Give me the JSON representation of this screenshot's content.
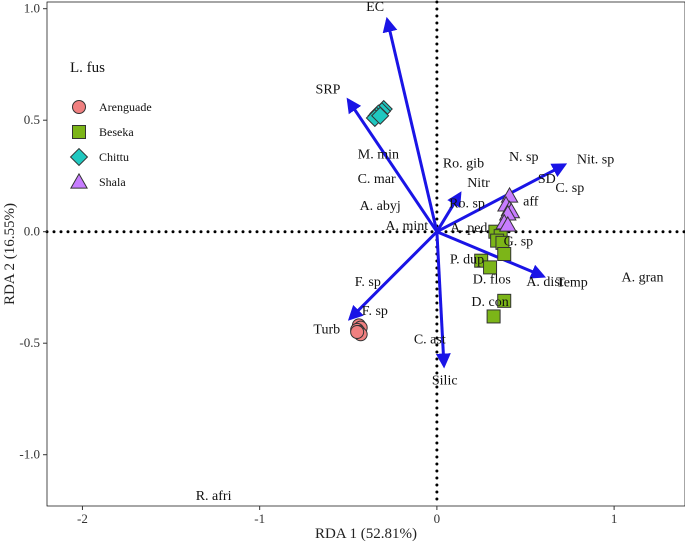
{
  "chart_data": {
    "type": "scatter",
    "title": "",
    "xlabel": "RDA 1 (52.81%)",
    "ylabel": "RDA 2 (16.55%)",
    "xlim": [
      -2.2,
      1.4
    ],
    "ylim": [
      -1.23,
      1.03
    ],
    "x_ticks": [
      -2,
      -1,
      0,
      1
    ],
    "y_ticks": [
      1.0,
      0.5,
      0.0,
      -0.5,
      -1.0
    ],
    "x_tick_labels": [
      "-2",
      "-1",
      "0",
      "1"
    ],
    "y_tick_labels": [
      "1.0",
      "0.5",
      "0.0",
      "-0.5",
      "-1.0"
    ],
    "reference_lines": {
      "x": 0,
      "y": 0,
      "style": "dotted"
    },
    "legend": {
      "title": "L. fus",
      "placement": "top-left",
      "entries": [
        {
          "label": "Arenguade",
          "shape": "circle",
          "color": "#f08080"
        },
        {
          "label": "Beseka",
          "shape": "square",
          "color": "#7cb518"
        },
        {
          "label": "Chittu",
          "shape": "diamond",
          "color": "#20c8c0"
        },
        {
          "label": "Shala",
          "shape": "triangle",
          "color": "#c77dff"
        }
      ]
    },
    "series": [
      {
        "name": "Arenguade",
        "shape": "circle",
        "color": "#f08080",
        "points": [
          [
            -0.44,
            -0.42
          ],
          [
            -0.43,
            -0.43
          ],
          [
            -0.45,
            -0.44
          ],
          [
            -0.44,
            -0.45
          ],
          [
            -0.43,
            -0.46
          ],
          [
            -0.45,
            -0.45
          ]
        ]
      },
      {
        "name": "Beseka",
        "shape": "square",
        "color": "#7cb518",
        "points": [
          [
            0.33,
            0.0
          ],
          [
            0.36,
            -0.02
          ],
          [
            0.34,
            -0.04
          ],
          [
            0.37,
            -0.05
          ],
          [
            0.38,
            -0.1
          ],
          [
            0.25,
            -0.13
          ],
          [
            0.3,
            -0.16
          ],
          [
            0.38,
            -0.31
          ],
          [
            0.32,
            -0.38
          ]
        ]
      },
      {
        "name": "Chittu",
        "shape": "diamond",
        "color": "#20c8c0",
        "points": [
          [
            -0.3,
            0.55
          ],
          [
            -0.31,
            0.54
          ],
          [
            -0.33,
            0.53
          ],
          [
            -0.34,
            0.52
          ],
          [
            -0.35,
            0.51
          ],
          [
            -0.32,
            0.52
          ]
        ]
      },
      {
        "name": "Shala",
        "shape": "triangle",
        "color": "#c77dff",
        "points": [
          [
            0.41,
            0.16
          ],
          [
            0.39,
            0.12
          ],
          [
            0.41,
            0.1
          ],
          [
            0.42,
            0.09
          ],
          [
            0.4,
            0.08
          ],
          [
            0.38,
            0.04
          ],
          [
            0.4,
            0.03
          ]
        ]
      }
    ],
    "environmental_vectors": [
      {
        "label": "EC",
        "x": -0.28,
        "y": 0.95
      },
      {
        "label": "SRP",
        "x": -0.5,
        "y": 0.59
      },
      {
        "label": "Nit. sp",
        "x": 0.72,
        "y": 0.3
      },
      {
        "label": "Temp",
        "x": 0.6,
        "y": -0.2
      },
      {
        "label": "Turb",
        "x": -0.49,
        "y": -0.39
      },
      {
        "label": "Silic",
        "x": 0.04,
        "y": -0.6
      },
      {
        "label": "Nitr",
        "x": 0.13,
        "y": 0.17
      }
    ],
    "species_labels": [
      {
        "label": "M. min",
        "x": -0.33,
        "y": 0.35
      },
      {
        "label": "Ro. gib",
        "x": 0.15,
        "y": 0.31
      },
      {
        "label": "C. mar",
        "x": -0.34,
        "y": 0.24
      },
      {
        "label": "N. sp",
        "x": 0.49,
        "y": 0.34
      },
      {
        "label": "SD",
        "x": 0.62,
        "y": 0.24
      },
      {
        "label": "C. sp",
        "x": 0.75,
        "y": 0.2
      },
      {
        "label": "aff",
        "x": 0.53,
        "y": 0.14
      },
      {
        "label": "Ro. sp",
        "x": 0.17,
        "y": 0.13
      },
      {
        "label": "A. abyj",
        "x": -0.32,
        "y": 0.12
      },
      {
        "label": "A. mint",
        "x": -0.17,
        "y": 0.03
      },
      {
        "label": "A. ped",
        "x": 0.18,
        "y": 0.02
      },
      {
        "label": "G. sp",
        "x": 0.46,
        "y": -0.04
      },
      {
        "label": "P. dup",
        "x": 0.17,
        "y": -0.12
      },
      {
        "label": "A. gran",
        "x": 1.16,
        "y": -0.2
      },
      {
        "label": "D. flos",
        "x": 0.31,
        "y": -0.21
      },
      {
        "label": "A. dist",
        "x": 0.61,
        "y": -0.22
      },
      {
        "label": "F. sp",
        "x": -0.39,
        "y": -0.22
      },
      {
        "label": "D. con",
        "x": 0.3,
        "y": -0.31
      },
      {
        "label": "F. sp",
        "x": -0.35,
        "y": -0.35
      },
      {
        "label": "C. ast",
        "x": -0.04,
        "y": -0.48
      },
      {
        "label": "R. afri",
        "x": -1.26,
        "y": -1.18
      }
    ]
  }
}
